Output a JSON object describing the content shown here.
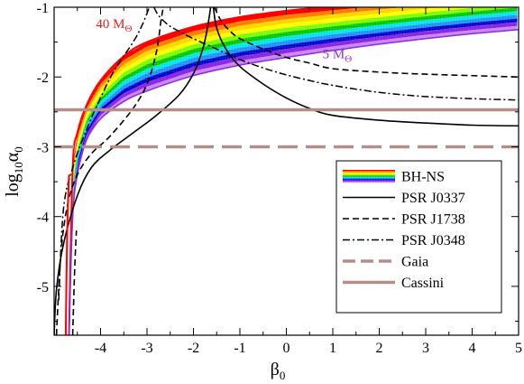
{
  "chart_data": {
    "type": "line",
    "xlabel": {
      "main": "β",
      "sub": "0"
    },
    "ylabel": {
      "main": "log",
      "sub1": "10",
      "mid": "α",
      "sub2": "0"
    },
    "xlim": [
      -5,
      5
    ],
    "ylim": [
      -5.7,
      -1
    ],
    "x_ticks": [
      -4,
      -3,
      -2,
      -1,
      0,
      1,
      2,
      3,
      4,
      5
    ],
    "y_ticks": [
      -5,
      -4,
      -3,
      -2,
      -1
    ],
    "x_tick_labels": [
      "-4",
      "-3",
      "-2",
      "-1",
      "0",
      "1",
      "2",
      "3",
      "4",
      "5"
    ],
    "y_tick_labels": [
      "-5",
      "-4",
      "-3",
      "-2",
      "-1"
    ],
    "grid": false,
    "legend_position": "bottom-right",
    "legend": [
      {
        "key": "bhns",
        "label": "BH-NS",
        "style": "rainbow-band"
      },
      {
        "key": "j0337",
        "label": "PSR J0337",
        "style": "solid",
        "color": "#000000"
      },
      {
        "key": "j1738",
        "label": "PSR J1738",
        "style": "dashed",
        "color": "#000000"
      },
      {
        "key": "j0348",
        "label": "PSR J0348",
        "style": "dash-dot",
        "color": "#000000"
      },
      {
        "key": "gaia",
        "label": "Gaia",
        "style": "dashed-thick",
        "color": "#b38f8b"
      },
      {
        "key": "cassini",
        "label": "Cassini",
        "style": "solid-thick",
        "color": "#b38f8b"
      }
    ],
    "annotations": [
      {
        "id": "mass-40",
        "text": "40 M",
        "sub": "Θ",
        "color": "#e8201e",
        "x": -4.1,
        "y": -1.3
      },
      {
        "id": "mass-5",
        "text": "5 M",
        "sub": "Θ",
        "color": "#9b2fc9",
        "x": 0.78,
        "y": -1.73
      }
    ],
    "bhns_band": {
      "colors": [
        "#ff0000",
        "#ff7f00",
        "#ffd700",
        "#ffff00",
        "#7cfc00",
        "#00c800",
        "#00e5e5",
        "#1e90ff",
        "#0000cd",
        "#8a2be2",
        "#cc88ee"
      ],
      "asymptote": -4.7,
      "upper_curve": [
        [
          -4.68,
          -5.7
        ],
        [
          -4.6,
          -3.3
        ],
        [
          -4.5,
          -2.8
        ],
        [
          -4.3,
          -2.4
        ],
        [
          -4.0,
          -2.05
        ],
        [
          -3.5,
          -1.7
        ],
        [
          -3.0,
          -1.5
        ],
        [
          -2.0,
          -1.28
        ],
        [
          -1.0,
          -1.14
        ],
        [
          0,
          -1.05
        ],
        [
          0.8,
          -1.0
        ]
      ],
      "lower_curve": [
        [
          -4.68,
          -5.7
        ],
        [
          -4.6,
          -4.0
        ],
        [
          -4.5,
          -3.4
        ],
        [
          -4.3,
          -2.9
        ],
        [
          -4.0,
          -2.6
        ],
        [
          -3.5,
          -2.35
        ],
        [
          -3.0,
          -2.2
        ],
        [
          -2.0,
          -1.98
        ],
        [
          -1.0,
          -1.83
        ],
        [
          0,
          -1.72
        ],
        [
          1,
          -1.62
        ],
        [
          2,
          -1.53
        ],
        [
          3,
          -1.45
        ],
        [
          4,
          -1.38
        ],
        [
          5,
          -1.32
        ]
      ],
      "inner_top": [
        [
          -4.65,
          -3.0
        ],
        [
          -4.5,
          -2.55
        ],
        [
          -4.0,
          -2.1
        ],
        [
          -3.5,
          -1.85
        ],
        [
          -3.0,
          -1.7
        ],
        [
          -2.0,
          -1.5
        ],
        [
          -1.0,
          -1.38
        ],
        [
          0,
          -1.28
        ],
        [
          1,
          -1.2
        ],
        [
          2,
          -1.13
        ],
        [
          3,
          -1.07
        ],
        [
          4,
          -1.02
        ],
        [
          4.8,
          -1.0
        ]
      ],
      "inner_bottom": [
        [
          -4.65,
          -3.4
        ],
        [
          -4.5,
          -3.0
        ],
        [
          -4.0,
          -2.45
        ],
        [
          -3.5,
          -2.2
        ],
        [
          -3.0,
          -2.05
        ],
        [
          -2.0,
          -1.85
        ],
        [
          -1.0,
          -1.72
        ],
        [
          0,
          -1.6
        ],
        [
          1,
          -1.5
        ],
        [
          2,
          -1.42
        ],
        [
          3,
          -1.35
        ],
        [
          4,
          -1.28
        ],
        [
          5,
          -1.23
        ]
      ]
    },
    "series": [
      {
        "key": "j0337",
        "style": "solid",
        "segments": [
          [
            [
              -5,
              -5.7
            ],
            [
              -4.95,
              -5.05
            ],
            [
              -4.8,
              -4.4
            ],
            [
              -4.5,
              -3.7
            ],
            [
              -4.2,
              -3.3
            ],
            [
              -3.8,
              -3.05
            ],
            [
              -3.3,
              -2.8
            ],
            [
              -2.8,
              -2.55
            ],
            [
              -2.3,
              -2.25
            ],
            [
              -2.0,
              -1.95
            ],
            [
              -1.8,
              -1.6
            ],
            [
              -1.7,
              -1.3
            ],
            [
              -1.63,
              -1.0
            ]
          ],
          [
            [
              -1.57,
              -1.0
            ],
            [
              -1.5,
              -1.3
            ],
            [
              -1.3,
              -1.6
            ],
            [
              -1.0,
              -1.85
            ],
            [
              -0.5,
              -2.1
            ],
            [
              0,
              -2.3
            ],
            [
              0.5,
              -2.45
            ],
            [
              1,
              -2.55
            ],
            [
              2,
              -2.62
            ],
            [
              3,
              -2.66
            ],
            [
              4,
              -2.69
            ],
            [
              5,
              -2.7
            ]
          ]
        ]
      },
      {
        "key": "j1738",
        "style": "dashed",
        "segments": [
          [
            [
              -4.95,
              -5.7
            ],
            [
              -4.85,
              -4.5
            ],
            [
              -4.7,
              -3.8
            ],
            [
              -4.5,
              -3.4
            ],
            [
              -4.2,
              -3.1
            ],
            [
              -3.8,
              -2.85
            ],
            [
              -3.3,
              -2.45
            ],
            [
              -3.0,
              -2.1
            ],
            [
              -2.8,
              -1.65
            ],
            [
              -2.7,
              -1.2
            ],
            [
              -2.65,
              -1.0
            ]
          ],
          [
            [
              -1.55,
              -1.0
            ],
            [
              -1.4,
              -1.2
            ],
            [
              -1.2,
              -1.35
            ],
            [
              -1.0,
              -1.45
            ],
            [
              -0.5,
              -1.6
            ],
            [
              0,
              -1.72
            ],
            [
              0.5,
              -1.8
            ],
            [
              1,
              -1.88
            ],
            [
              2,
              -1.93
            ],
            [
              3,
              -1.96
            ],
            [
              4,
              -1.98
            ],
            [
              5,
              -2.0
            ]
          ]
        ]
      },
      {
        "key": "j0348",
        "style": "dash-dot",
        "segments": [
          [
            [
              -4.9,
              -5.2
            ],
            [
              -4.8,
              -3.9
            ],
            [
              -4.6,
              -3.3
            ],
            [
              -4.3,
              -2.75
            ],
            [
              -4.0,
              -2.3
            ],
            [
              -3.7,
              -1.9
            ],
            [
              -3.3,
              -1.5
            ],
            [
              -3.1,
              -1.25
            ],
            [
              -2.95,
              -1.0
            ]
          ],
          [
            [
              -2.85,
              -1.0
            ],
            [
              -2.75,
              -1.12
            ],
            [
              -2.55,
              -1.25
            ],
            [
              -2.3,
              -1.35
            ],
            [
              -2.0,
              -1.45
            ],
            [
              -1.5,
              -1.6
            ],
            [
              -1.0,
              -1.75
            ],
            [
              -0.5,
              -1.87
            ],
            [
              0,
              -1.97
            ],
            [
              0.5,
              -2.05
            ],
            [
              1,
              -2.12
            ],
            [
              2,
              -2.22
            ],
            [
              3,
              -2.28
            ],
            [
              4,
              -2.31
            ],
            [
              5,
              -2.33
            ]
          ]
        ]
      },
      {
        "key": "gaia",
        "style": "dashed-thick",
        "y": -3.0
      },
      {
        "key": "cassini",
        "style": "solid-thick",
        "y": -2.47
      },
      {
        "key": "steep-left",
        "style": "solid-red",
        "segments": [
          [
            [
              -4.75,
              -5.7
            ],
            [
              -4.72,
              -4.3
            ],
            [
              -4.68,
              -3.4
            ]
          ]
        ]
      },
      {
        "key": "steep-left-dash",
        "style": "dashed",
        "segments": [
          [
            [
              -4.6,
              -5.7
            ],
            [
              -4.56,
              -4.8
            ],
            [
              -4.52,
              -4.2
            ]
          ]
        ]
      }
    ]
  }
}
